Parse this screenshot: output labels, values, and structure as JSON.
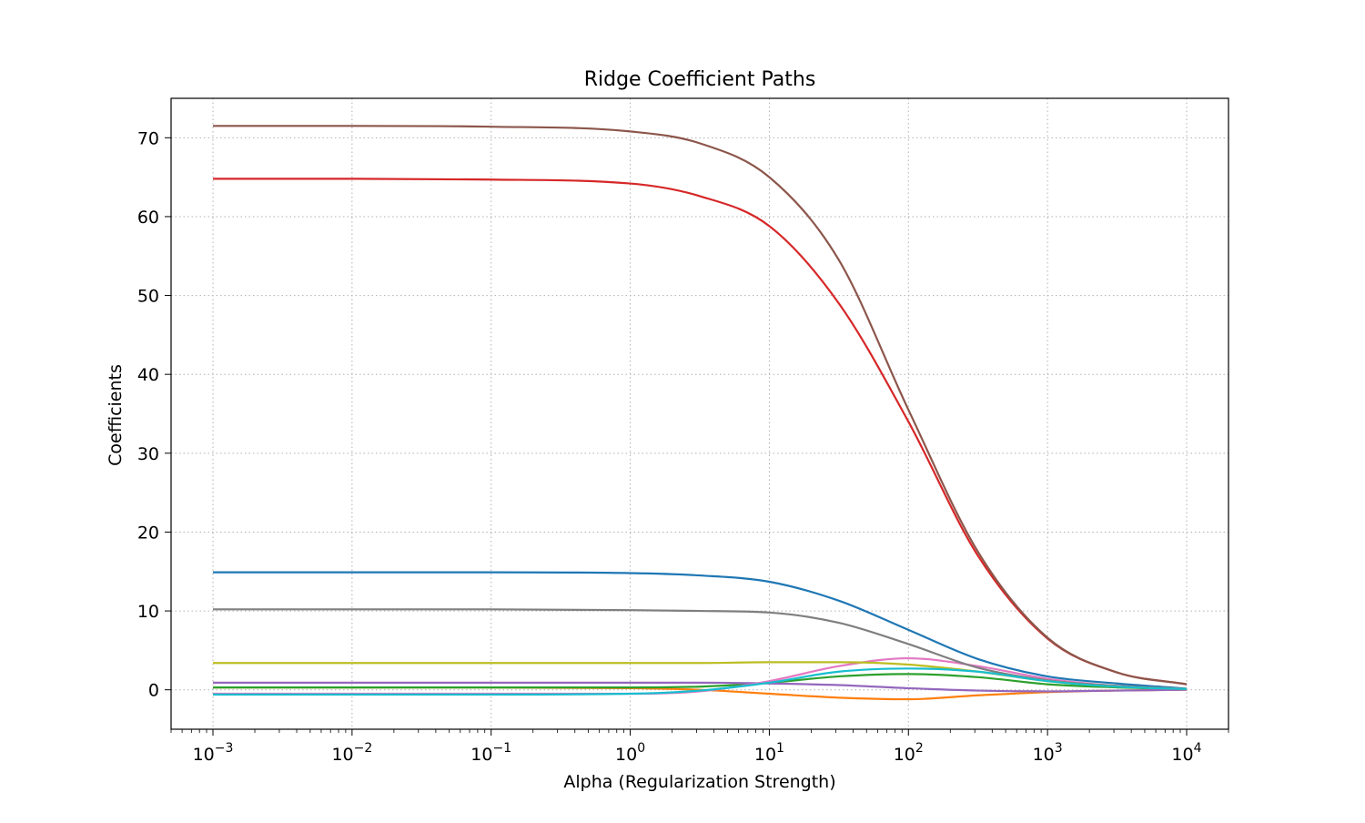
{
  "chart_data": {
    "type": "line",
    "title": "Ridge Coefficient Paths",
    "xlabel": "Alpha (Regularization Strength)",
    "ylabel": "Coefficients",
    "xscale": "log",
    "xlim": [
      0.0005,
      20000
    ],
    "ylim": [
      -5,
      75
    ],
    "grid": true,
    "legend": "none",
    "x_ticks": [
      {
        "value": 0.001,
        "base": "10",
        "exp": "−3"
      },
      {
        "value": 0.01,
        "base": "10",
        "exp": "−2"
      },
      {
        "value": 0.1,
        "base": "10",
        "exp": "−1"
      },
      {
        "value": 1,
        "base": "10",
        "exp": "0"
      },
      {
        "value": 10,
        "base": "10",
        "exp": "1"
      },
      {
        "value": 100,
        "base": "10",
        "exp": "2"
      },
      {
        "value": 1000,
        "base": "10",
        "exp": "3"
      },
      {
        "value": 10000,
        "base": "10",
        "exp": "4"
      }
    ],
    "y_ticks": [
      {
        "value": 0,
        "label": "0"
      },
      {
        "value": 10,
        "label": "10"
      },
      {
        "value": 20,
        "label": "20"
      },
      {
        "value": 30,
        "label": "30"
      },
      {
        "value": 40,
        "label": "40"
      },
      {
        "value": 50,
        "label": "50"
      },
      {
        "value": 60,
        "label": "60"
      },
      {
        "value": 70,
        "label": "70"
      }
    ],
    "x": [
      0.001,
      0.01,
      0.1,
      1,
      3.16,
      10,
      31.6,
      100,
      316,
      1000,
      3160,
      10000
    ],
    "series": [
      {
        "color": "#1f77b4",
        "values": [
          14.9,
          14.9,
          14.9,
          14.8,
          14.5,
          13.7,
          11.3,
          7.6,
          3.9,
          1.7,
          0.8,
          0.15
        ]
      },
      {
        "color": "#ff7f0e",
        "values": [
          0.3,
          0.3,
          0.3,
          0.2,
          0.0,
          -0.5,
          -1.0,
          -1.2,
          -0.7,
          -0.3,
          -0.1,
          0.0
        ]
      },
      {
        "color": "#2ca02c",
        "values": [
          0.3,
          0.3,
          0.3,
          0.3,
          0.4,
          0.9,
          1.7,
          2.0,
          1.6,
          0.7,
          0.3,
          0.05
        ]
      },
      {
        "color": "#d62728",
        "values": [
          64.8,
          64.8,
          64.7,
          64.2,
          62.6,
          58.8,
          49.0,
          34.0,
          17.0,
          6.5,
          2.2,
          0.7
        ]
      },
      {
        "color": "#9467bd",
        "values": [
          0.9,
          0.9,
          0.9,
          0.9,
          0.9,
          0.8,
          0.6,
          0.2,
          -0.1,
          -0.2,
          -0.1,
          0.0
        ]
      },
      {
        "color": "#8c564b",
        "values": [
          71.5,
          71.5,
          71.4,
          70.8,
          69.3,
          65.0,
          54.5,
          35.5,
          17.5,
          6.6,
          2.2,
          0.7
        ]
      },
      {
        "color": "#e377c2",
        "values": [
          -0.5,
          -0.5,
          -0.5,
          -0.5,
          -0.2,
          1.1,
          3.0,
          4.0,
          3.0,
          1.4,
          0.5,
          0.1
        ]
      },
      {
        "color": "#7f7f7f",
        "values": [
          10.2,
          10.2,
          10.2,
          10.1,
          10.0,
          9.8,
          8.5,
          5.8,
          2.8,
          1.2,
          0.5,
          0.1
        ]
      },
      {
        "color": "#bcbd22",
        "values": [
          3.4,
          3.4,
          3.4,
          3.4,
          3.4,
          3.5,
          3.5,
          3.2,
          2.3,
          1.1,
          0.4,
          0.1
        ]
      },
      {
        "color": "#17becf",
        "values": [
          -0.6,
          -0.6,
          -0.6,
          -0.5,
          -0.1,
          0.9,
          2.3,
          2.7,
          2.3,
          1.1,
          0.4,
          0.1
        ]
      }
    ]
  }
}
